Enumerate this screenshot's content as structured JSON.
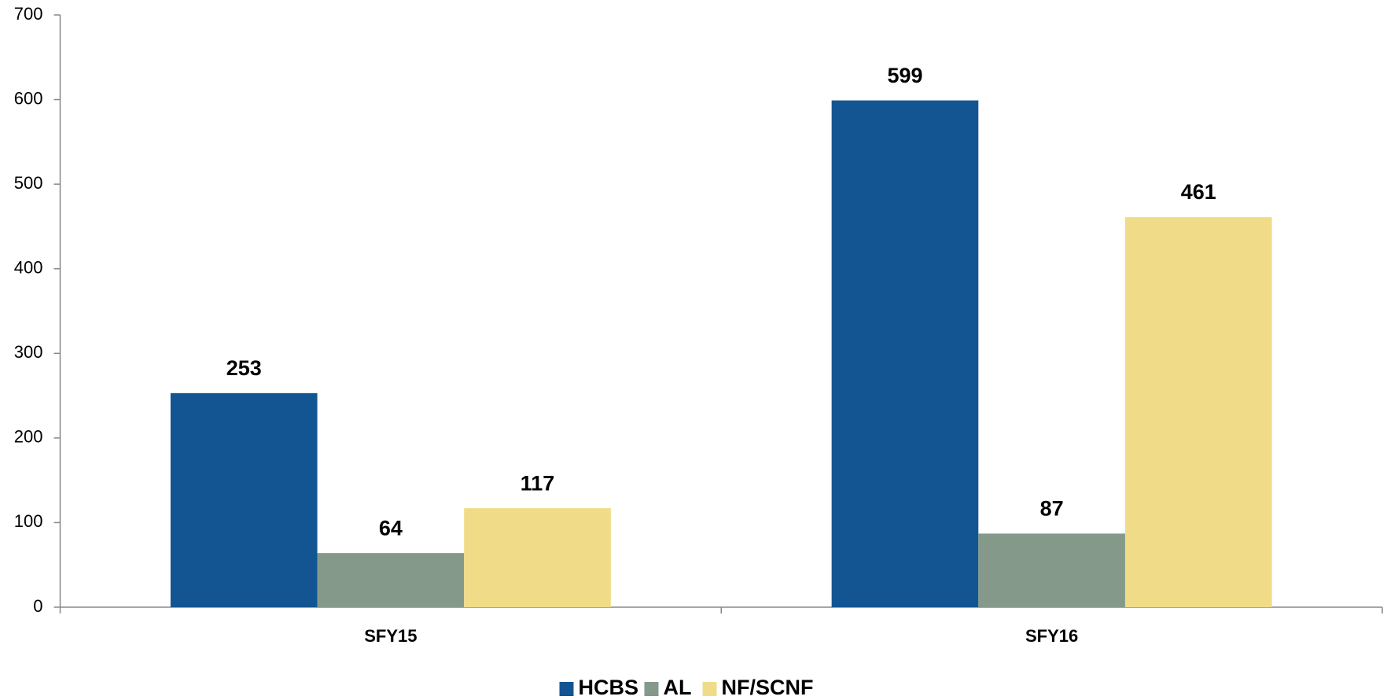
{
  "chart_data": {
    "type": "bar",
    "categories": [
      "SFY15",
      "SFY16"
    ],
    "series": [
      {
        "name": "HCBS",
        "color": "#135592",
        "values": [
          253,
          599
        ]
      },
      {
        "name": "AL",
        "color": "#84998a",
        "values": [
          64,
          87
        ]
      },
      {
        "name": "NF/SCNF",
        "color": "#f0dc88",
        "values": [
          117,
          461
        ]
      }
    ],
    "ylim": [
      0,
      700
    ],
    "yticks": [
      0,
      100,
      200,
      300,
      400,
      500,
      600,
      700
    ],
    "grid": false,
    "legend": "bottom"
  }
}
